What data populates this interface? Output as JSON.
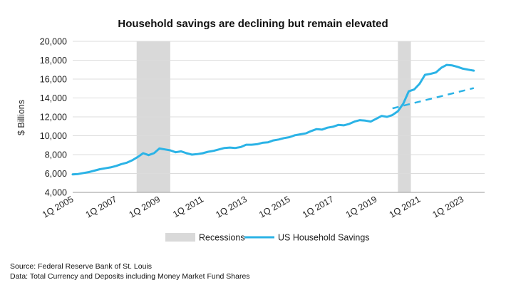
{
  "chart_data": {
    "type": "line",
    "title": "Household savings are declining but remain elevated",
    "ylabel": "$ Billions",
    "xlabel": "",
    "ylim": [
      4000,
      20000
    ],
    "yticks": [
      4000,
      6000,
      8000,
      10000,
      12000,
      14000,
      16000,
      18000,
      20000
    ],
    "ytick_labels": [
      "4,000",
      "6,000",
      "8,000",
      "10,000",
      "12,000",
      "14,000",
      "16,000",
      "18,000",
      "20,000"
    ],
    "xlim": [
      2005,
      2024
    ],
    "xticks": [
      2005,
      2007,
      2009,
      2011,
      2013,
      2015,
      2017,
      2019,
      2021,
      2023
    ],
    "xtick_labels": [
      "1Q 2005",
      "1Q 2007",
      "1Q 2009",
      "1Q 2011",
      "1Q 2013",
      "1Q 2015",
      "1Q 2017",
      "1Q 2019",
      "1Q 2021",
      "1Q 2023"
    ],
    "grid": true,
    "legend_position": "bottom",
    "recessions": [
      {
        "start": 2007.95,
        "end": 2009.5
      },
      {
        "start": 2020.0,
        "end": 2020.6
      }
    ],
    "series": [
      {
        "name": "US Household Savings",
        "color": "#2bb3e6",
        "style": "solid",
        "points": [
          [
            2005.0,
            5900
          ],
          [
            2005.25,
            5950
          ],
          [
            2005.5,
            6050
          ],
          [
            2005.75,
            6150
          ],
          [
            2006.0,
            6300
          ],
          [
            2006.25,
            6450
          ],
          [
            2006.5,
            6550
          ],
          [
            2006.75,
            6650
          ],
          [
            2007.0,
            6800
          ],
          [
            2007.25,
            7000
          ],
          [
            2007.5,
            7150
          ],
          [
            2007.75,
            7400
          ],
          [
            2008.0,
            7750
          ],
          [
            2008.25,
            8150
          ],
          [
            2008.5,
            7950
          ],
          [
            2008.75,
            8150
          ],
          [
            2009.0,
            8650
          ],
          [
            2009.25,
            8550
          ],
          [
            2009.5,
            8450
          ],
          [
            2009.75,
            8250
          ],
          [
            2010.0,
            8350
          ],
          [
            2010.25,
            8150
          ],
          [
            2010.5,
            8000
          ],
          [
            2010.75,
            8050
          ],
          [
            2011.0,
            8150
          ],
          [
            2011.25,
            8300
          ],
          [
            2011.5,
            8400
          ],
          [
            2011.75,
            8550
          ],
          [
            2012.0,
            8700
          ],
          [
            2012.25,
            8750
          ],
          [
            2012.5,
            8700
          ],
          [
            2012.75,
            8800
          ],
          [
            2013.0,
            9050
          ],
          [
            2013.25,
            9050
          ],
          [
            2013.5,
            9100
          ],
          [
            2013.75,
            9250
          ],
          [
            2014.0,
            9300
          ],
          [
            2014.25,
            9500
          ],
          [
            2014.5,
            9600
          ],
          [
            2014.75,
            9750
          ],
          [
            2015.0,
            9850
          ],
          [
            2015.25,
            10050
          ],
          [
            2015.5,
            10150
          ],
          [
            2015.75,
            10250
          ],
          [
            2016.0,
            10500
          ],
          [
            2016.25,
            10700
          ],
          [
            2016.5,
            10650
          ],
          [
            2016.75,
            10850
          ],
          [
            2017.0,
            10950
          ],
          [
            2017.25,
            11150
          ],
          [
            2017.5,
            11100
          ],
          [
            2017.75,
            11250
          ],
          [
            2018.0,
            11500
          ],
          [
            2018.25,
            11650
          ],
          [
            2018.5,
            11600
          ],
          [
            2018.75,
            11500
          ],
          [
            2019.0,
            11800
          ],
          [
            2019.25,
            12100
          ],
          [
            2019.5,
            12000
          ],
          [
            2019.75,
            12200
          ],
          [
            2020.0,
            12600
          ],
          [
            2020.25,
            13400
          ],
          [
            2020.5,
            14700
          ],
          [
            2020.75,
            14900
          ],
          [
            2021.0,
            15500
          ],
          [
            2021.25,
            16450
          ],
          [
            2021.5,
            16550
          ],
          [
            2021.75,
            16700
          ],
          [
            2022.0,
            17200
          ],
          [
            2022.25,
            17500
          ],
          [
            2022.5,
            17450
          ],
          [
            2022.75,
            17300
          ],
          [
            2023.0,
            17100
          ],
          [
            2023.25,
            17000
          ],
          [
            2023.5,
            16900
          ]
        ]
      },
      {
        "name": "",
        "color": "#2bb3e6",
        "style": "dashed",
        "points": [
          [
            2019.75,
            12900
          ],
          [
            2023.5,
            15050
          ]
        ]
      }
    ],
    "legend": [
      {
        "label": "Recessions",
        "kind": "box",
        "color": "#d9d9d9"
      },
      {
        "label": "US Household Savings",
        "kind": "line",
        "color": "#2bb3e6"
      }
    ]
  },
  "footer": {
    "source": "Source: Federal Reserve Bank of St. Louis",
    "data_note": "Data: Total Currency and Deposits including Money Market Fund Shares"
  }
}
